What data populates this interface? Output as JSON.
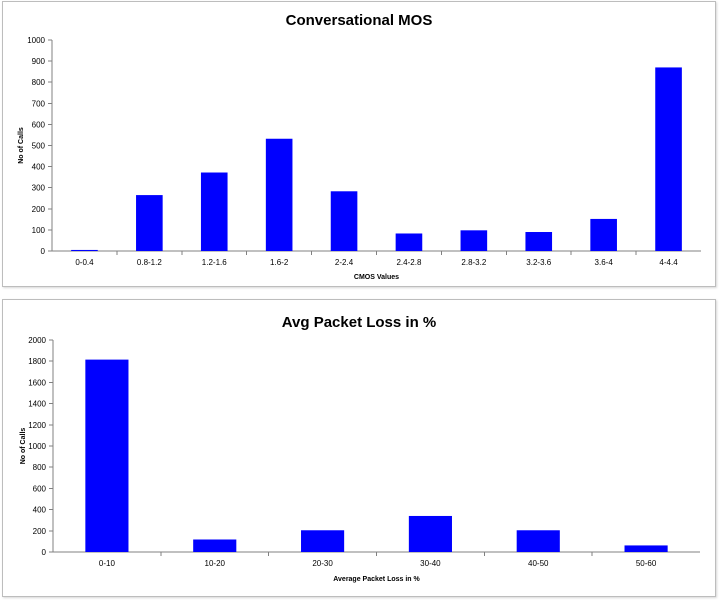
{
  "chart_data": [
    {
      "type": "bar",
      "title": "Conversational MOS",
      "xlabel": "CMOS Values",
      "ylabel": "No of Calls",
      "ylim": [
        0,
        1000
      ],
      "yticks": [
        0,
        100,
        200,
        300,
        400,
        500,
        600,
        700,
        800,
        900,
        1000
      ],
      "categories": [
        "0-0.4",
        "0.8-1.2",
        "1.2-1.6",
        "1.6-2",
        "2-2.4",
        "2.4-2.8",
        "2.8-3.2",
        "3.2-3.6",
        "3.6-4",
        "4-4.4"
      ],
      "values": [
        5,
        265,
        372,
        532,
        283,
        83,
        98,
        90,
        152,
        870
      ],
      "bar_color": "#0000FF",
      "grid": false,
      "legend": "none"
    },
    {
      "type": "bar",
      "title": "Avg Packet Loss in %",
      "xlabel": "Average Packet Loss in %",
      "ylabel": "No of Calls",
      "ylim": [
        0,
        2000
      ],
      "yticks": [
        0,
        200,
        400,
        600,
        800,
        1000,
        1200,
        1400,
        1600,
        1800,
        2000
      ],
      "categories": [
        "0-10",
        "10-20",
        "20-30",
        "30-40",
        "40-50",
        "50-60"
      ],
      "values": [
        1815,
        118,
        205,
        340,
        205,
        62
      ],
      "bar_color": "#0000FF",
      "grid": false,
      "legend": "none"
    }
  ]
}
